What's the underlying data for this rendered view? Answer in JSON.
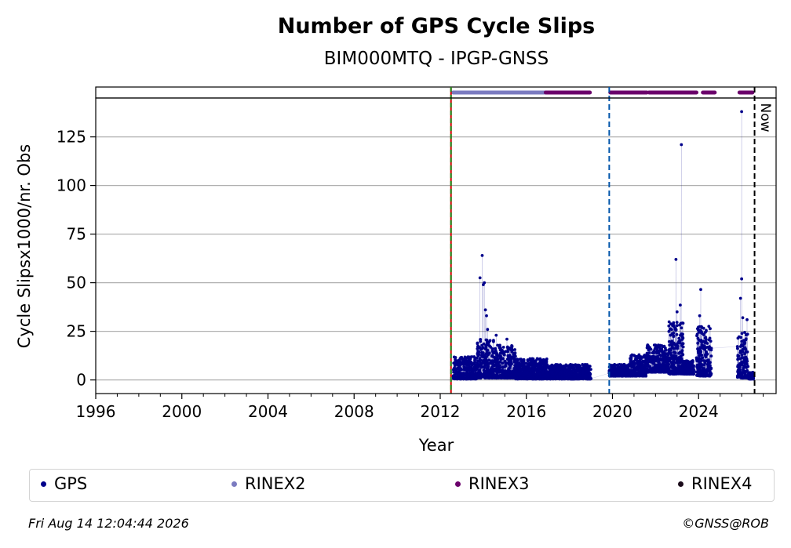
{
  "chart_data": {
    "type": "scatter",
    "title": "Number of GPS Cycle Slips",
    "subtitle": "BIM000MTQ - IPGP-GNSS",
    "xlabel": "Year",
    "ylabel": "Cycle Slipsx1000/nr. Obs",
    "xlim": [
      1996,
      2027.6
    ],
    "ylim": [
      -7,
      145
    ],
    "x_ticks": [
      1996,
      2000,
      2004,
      2008,
      2012,
      2016,
      2020,
      2024
    ],
    "y_ticks": [
      0,
      25,
      50,
      75,
      100,
      125
    ],
    "grid": "horizontal",
    "now_label": "Now",
    "vertical_lines": [
      {
        "x": 2012.5,
        "style": "red-green-dashed"
      },
      {
        "x": 2019.85,
        "style": "blue-dashed"
      },
      {
        "x": 2026.6,
        "style": "black-dashed"
      }
    ],
    "rinex_bars": [
      {
        "name": "RINEX2",
        "color": "#7b7bc0",
        "start": 2012.6,
        "end": 2016.9
      },
      {
        "name": "RINEX3",
        "color": "#6b006b",
        "start": 2016.9,
        "end": 2018.95
      },
      {
        "name": "RINEX3",
        "color": "#6b006b",
        "start": 2019.9,
        "end": 2021.6
      },
      {
        "name": "RINEX3",
        "color": "#6b006b",
        "start": 2021.7,
        "end": 2023.9
      },
      {
        "name": "RINEX3",
        "color": "#6b006b",
        "start": 2024.2,
        "end": 2024.75
      },
      {
        "name": "RINEX3",
        "color": "#6b006b",
        "start": 2025.9,
        "end": 2026.5
      }
    ],
    "series": [
      {
        "name": "GPS",
        "color": "#00008b",
        "outliers": [
          [
            2013.85,
            52.5
          ],
          [
            2013.95,
            64.0
          ],
          [
            2014.0,
            49.0
          ],
          [
            2014.05,
            50.0
          ],
          [
            2014.1,
            36.0
          ],
          [
            2014.15,
            33.0
          ],
          [
            2014.2,
            26.0
          ],
          [
            2014.6,
            23.0
          ],
          [
            2015.1,
            21.0
          ],
          [
            2022.95,
            62.0
          ],
          [
            2023.0,
            35.0
          ],
          [
            2023.15,
            38.5
          ],
          [
            2023.2,
            121.0
          ],
          [
            2024.1,
            46.5
          ],
          [
            2024.05,
            33.0
          ],
          [
            2026.0,
            138.0
          ],
          [
            2026.0,
            52.0
          ],
          [
            2025.95,
            42.0
          ],
          [
            2026.05,
            32.0
          ],
          [
            2026.25,
            31.0
          ]
        ],
        "segments": [
          {
            "start": 2012.6,
            "end": 2013.7,
            "low": 0.5,
            "high": 12
          },
          {
            "start": 2013.7,
            "end": 2014.5,
            "low": 1,
            "high": 22
          },
          {
            "start": 2014.5,
            "end": 2015.5,
            "low": 1,
            "high": 18
          },
          {
            "start": 2015.5,
            "end": 2017.0,
            "low": 0.5,
            "high": 11
          },
          {
            "start": 2017.0,
            "end": 2019.0,
            "low": 0.5,
            "high": 8
          },
          {
            "start": 2019.85,
            "end": 2020.8,
            "low": 2,
            "high": 8
          },
          {
            "start": 2020.8,
            "end": 2021.6,
            "low": 2,
            "high": 13
          },
          {
            "start": 2021.6,
            "end": 2022.6,
            "low": 4,
            "high": 18
          },
          {
            "start": 2022.6,
            "end": 2023.3,
            "low": 3,
            "high": 30
          },
          {
            "start": 2023.3,
            "end": 2023.8,
            "low": 3,
            "high": 10
          },
          {
            "start": 2023.9,
            "end": 2024.6,
            "low": 2,
            "high": 28
          },
          {
            "start": 2025.8,
            "end": 2026.3,
            "low": 1,
            "high": 25
          },
          {
            "start": 2026.3,
            "end": 2026.55,
            "low": 0.5,
            "high": 4
          }
        ]
      }
    ]
  },
  "legend": {
    "items": [
      {
        "label": "GPS",
        "color": "#00008b"
      },
      {
        "label": "RINEX2",
        "color": "#7b7bc0"
      },
      {
        "label": "RINEX3",
        "color": "#6b006b"
      },
      {
        "label": "RINEX4",
        "color": "#1a0a1a"
      }
    ]
  },
  "footer": {
    "timestamp": "Fri Aug 14 12:04:44 2026",
    "copyright": "©GNSS@ROB"
  }
}
